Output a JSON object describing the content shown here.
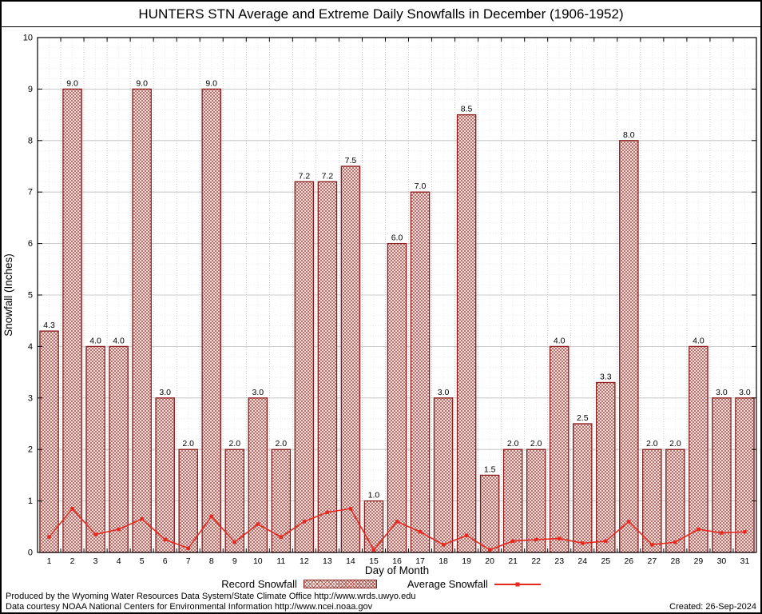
{
  "title": "HUNTERS STN Average and Extreme Daily Snowfalls in December (1906-1952)",
  "chart_data": {
    "type": "bar",
    "title": "HUNTERS STN Average and Extreme Daily Snowfalls in December (1906-1952)",
    "xlabel": "Day of Month",
    "ylabel": "Snowfall (Inches)",
    "ylim": [
      0,
      10
    ],
    "y_major_step": 1,
    "y_minor_step": 0.2,
    "grid": true,
    "legend_position": "bottom",
    "categories": [
      1,
      2,
      3,
      4,
      5,
      6,
      7,
      8,
      9,
      10,
      11,
      12,
      13,
      14,
      15,
      16,
      17,
      18,
      19,
      20,
      21,
      22,
      23,
      24,
      25,
      26,
      27,
      28,
      29,
      30,
      31
    ],
    "series": [
      {
        "name": "Record Snowfall",
        "type": "bar",
        "values": [
          4.3,
          9.0,
          4.0,
          4.0,
          9.0,
          3.0,
          2.0,
          9.0,
          2.0,
          3.0,
          2.0,
          7.2,
          7.2,
          7.5,
          1.0,
          6.0,
          7.0,
          3.0,
          8.5,
          1.5,
          2.0,
          2.0,
          4.0,
          2.5,
          3.3,
          8.0,
          2.0,
          2.0,
          4.0,
          3.0,
          3.0
        ],
        "labels": [
          "4.3",
          "9.0",
          "4.0",
          "4.0",
          "9.0",
          "3.0",
          "2.0",
          "9.0",
          "2.0",
          "3.0",
          "2.0",
          "7.2",
          "7.2",
          "7.5",
          "1.0",
          "6.0",
          "7.0",
          "3.0",
          "8.5",
          "1.5",
          "2.0",
          "2.0",
          "4.0",
          "2.5",
          "3.3",
          "8.0",
          "2.0",
          "2.0",
          "4.0",
          "3.0",
          "3.0"
        ]
      },
      {
        "name": "Average Snowfall",
        "type": "line",
        "values": [
          0.3,
          0.85,
          0.35,
          0.45,
          0.65,
          0.25,
          0.08,
          0.7,
          0.2,
          0.55,
          0.3,
          0.6,
          0.78,
          0.85,
          0.05,
          0.6,
          0.4,
          0.15,
          0.33,
          0.05,
          0.22,
          0.25,
          0.27,
          0.18,
          0.22,
          0.6,
          0.15,
          0.2,
          0.45,
          0.38,
          0.4
        ]
      }
    ]
  },
  "legend": {
    "record_label": "Record Snowfall",
    "average_label": "Average Snowfall"
  },
  "footer": {
    "line1": "Produced by the Wyoming Water Resources Data System/State Climate Office http://www.wrds.uwyo.edu",
    "line2": "Data courtesy NOAA National Centers for Environmental Information http://www.ncei.noaa.gov",
    "created": "Created: 26-Sep-2024"
  },
  "colors": {
    "bar_stroke": "#8b1a1a",
    "bar_hatch": "#b0524a",
    "line": "#e8281e",
    "grid_major": "#bbbbbb",
    "grid_minor": "#dddddd",
    "axis": "#000000"
  }
}
